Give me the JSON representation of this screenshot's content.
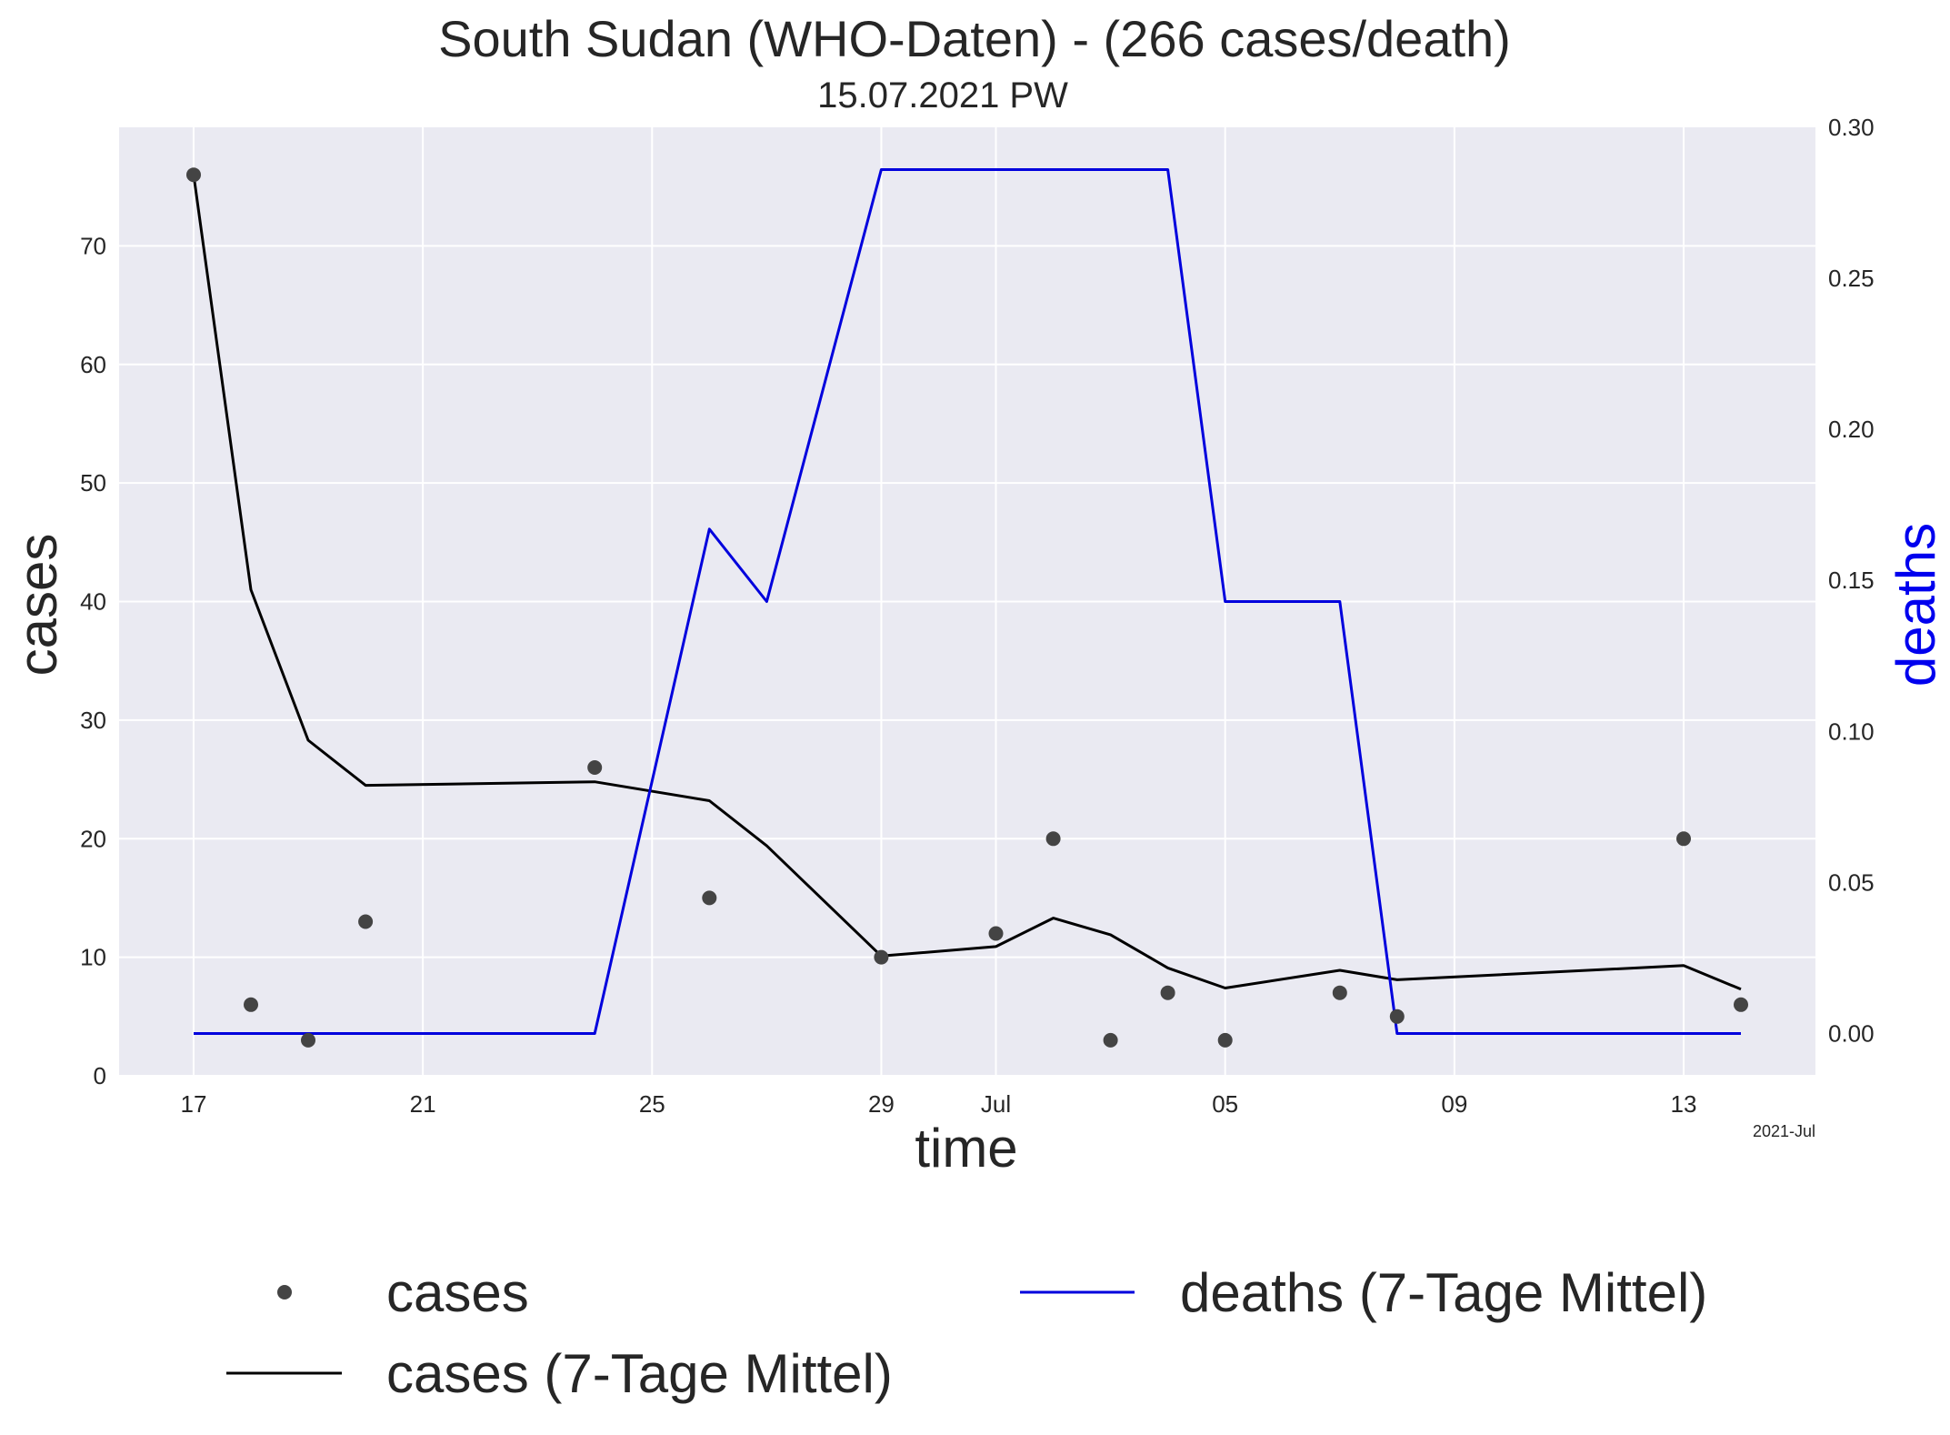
{
  "chart_data": {
    "type": "line",
    "title": "South Sudan (WHO-Daten) - (266 cases/death)",
    "subtitle": "15.07.2021 PW",
    "xlabel": "time",
    "ylabel": "cases",
    "y2label": "deaths",
    "x_offset_label": "2021-Jul",
    "x_start": "2021-06-17",
    "x_ticks": [
      {
        "date": "2021-06-17",
        "label": "17"
      },
      {
        "date": "2021-06-21",
        "label": "21"
      },
      {
        "date": "2021-06-25",
        "label": "25"
      },
      {
        "date": "2021-06-29",
        "label": "29"
      },
      {
        "date": "2021-07-01",
        "label": "Jul"
      },
      {
        "date": "2021-07-05",
        "label": "05"
      },
      {
        "date": "2021-07-09",
        "label": "09"
      },
      {
        "date": "2021-07-13",
        "label": "13"
      }
    ],
    "xlim": [
      "2021-06-15.7",
      "2021-07-15.3"
    ],
    "ylim": [
      0,
      80
    ],
    "y_ticks": [
      "0",
      "10",
      "20",
      "30",
      "40",
      "50",
      "60",
      "70"
    ],
    "y2lim": [
      -0.014,
      0.3
    ],
    "y2_ticks": [
      "0.00",
      "0.05",
      "0.10",
      "0.15",
      "0.20",
      "0.25",
      "0.30"
    ],
    "grid": true,
    "legend_position": "bottom",
    "colors": {
      "cases": "#444444",
      "cases_avg": "#000000",
      "deaths_avg": "#0000dd",
      "plot_bg": "#eaeaf2",
      "y2label": "#0000ee"
    },
    "series": [
      {
        "name": "cases",
        "style": "points",
        "axis": "left",
        "points": [
          [
            "2021-06-17",
            76
          ],
          [
            "2021-06-18",
            6
          ],
          [
            "2021-06-19",
            3
          ],
          [
            "2021-06-20",
            13
          ],
          [
            "2021-06-24",
            26
          ],
          [
            "2021-06-26",
            15
          ],
          [
            "2021-06-29",
            10
          ],
          [
            "2021-07-01",
            12
          ],
          [
            "2021-07-02",
            20
          ],
          [
            "2021-07-03",
            3
          ],
          [
            "2021-07-04",
            7
          ],
          [
            "2021-07-05",
            3
          ],
          [
            "2021-07-07",
            7
          ],
          [
            "2021-07-08",
            5
          ],
          [
            "2021-07-13",
            20
          ],
          [
            "2021-07-14",
            6
          ]
        ]
      },
      {
        "name": "cases (7-Tage Mittel)",
        "style": "line",
        "axis": "left",
        "points": [
          [
            "2021-06-17",
            76
          ],
          [
            "2021-06-18",
            41
          ],
          [
            "2021-06-19",
            28.3
          ],
          [
            "2021-06-20",
            24.5
          ],
          [
            "2021-06-24",
            24.8
          ],
          [
            "2021-06-26",
            23.2
          ],
          [
            "2021-06-27",
            19.4
          ],
          [
            "2021-06-29",
            10.1
          ],
          [
            "2021-07-01",
            10.9
          ],
          [
            "2021-07-02",
            13.3
          ],
          [
            "2021-07-03",
            11.9
          ],
          [
            "2021-07-04",
            9.1
          ],
          [
            "2021-07-05",
            7.4
          ],
          [
            "2021-07-07",
            8.9
          ],
          [
            "2021-07-08",
            8.1
          ],
          [
            "2021-07-13",
            9.3
          ],
          [
            "2021-07-14",
            7.3
          ]
        ]
      },
      {
        "name": "deaths (7-Tage Mittel)",
        "style": "line",
        "axis": "right",
        "points": [
          [
            "2021-06-17",
            0
          ],
          [
            "2021-06-24",
            0
          ],
          [
            "2021-06-26",
            0.167
          ],
          [
            "2021-06-27",
            0.143
          ],
          [
            "2021-06-29",
            0.286
          ],
          [
            "2021-07-04",
            0.286
          ],
          [
            "2021-07-05",
            0.143
          ],
          [
            "2021-07-07",
            0.143
          ],
          [
            "2021-07-08",
            0
          ],
          [
            "2021-07-14",
            0
          ]
        ]
      }
    ],
    "legend": [
      {
        "label": "cases",
        "marker": "point"
      },
      {
        "label": "cases (7-Tage Mittel)",
        "marker": "line"
      },
      {
        "label": "deaths (7-Tage Mittel)",
        "marker": "line"
      }
    ]
  }
}
